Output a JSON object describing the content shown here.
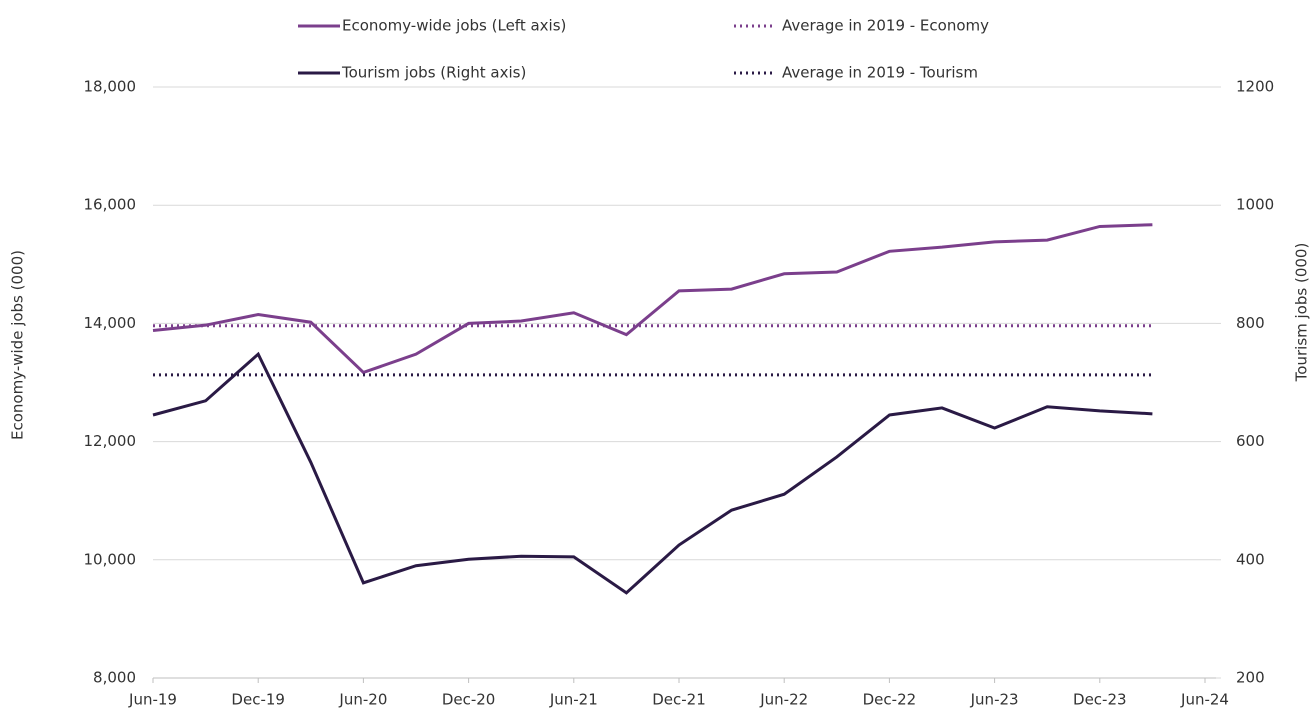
{
  "chart_data": {
    "type": "line",
    "categories": [
      "Jun-19",
      null,
      "Dec-19",
      null,
      "Jun-20",
      null,
      "Dec-20",
      null,
      "Jun-21",
      null,
      "Dec-21",
      null,
      "Jun-22",
      null,
      "Dec-22",
      null,
      "Jun-23",
      null,
      "Dec-23",
      null,
      "Jun-24"
    ],
    "series": [
      {
        "name": "Economy-wide jobs (Left axis)",
        "color": "#7b3f8c",
        "style": "solid",
        "axis": "y",
        "values": [
          13880,
          13970,
          14150,
          14020,
          13170,
          13480,
          14000,
          14040,
          14180,
          13810,
          14550,
          14580,
          14840,
          14870,
          15220,
          15290,
          15380,
          15410,
          15640,
          15670,
          null
        ]
      },
      {
        "name": "Average in 2019 - Economy",
        "color": "#7b3f8c",
        "style": "dotted",
        "axis": "y",
        "value": 13960
      },
      {
        "name": "Tourism jobs (Right axis)",
        "color": "#2a1a45",
        "style": "solid",
        "axis": "y2",
        "values": [
          645,
          669,
          748,
          565,
          361,
          390,
          401,
          406,
          405,
          344,
          425,
          484,
          511,
          574,
          645,
          657,
          623,
          659,
          652,
          647,
          null
        ]
      },
      {
        "name": "Average in 2019 - Tourism",
        "color": "#2a1a45",
        "style": "dotted",
        "axis": "y2",
        "value": 713
      }
    ],
    "ylabel": "Economy-wide jobs (000)",
    "y2label": "Tourism jobs (000)",
    "ylim": [
      8000,
      18000
    ],
    "yticks": [
      {
        "value": 8000,
        "label": "8,000"
      },
      {
        "value": 10000,
        "label": "10,000"
      },
      {
        "value": 12000,
        "label": "12,000"
      },
      {
        "value": 14000,
        "label": "14,000"
      },
      {
        "value": 16000,
        "label": "16,000"
      },
      {
        "value": 18000,
        "label": "18,000"
      }
    ],
    "y2lim": [
      200,
      1200
    ],
    "y2ticks": [
      200,
      400,
      600,
      800,
      1000,
      1200
    ],
    "grid": true,
    "legend": "top"
  }
}
